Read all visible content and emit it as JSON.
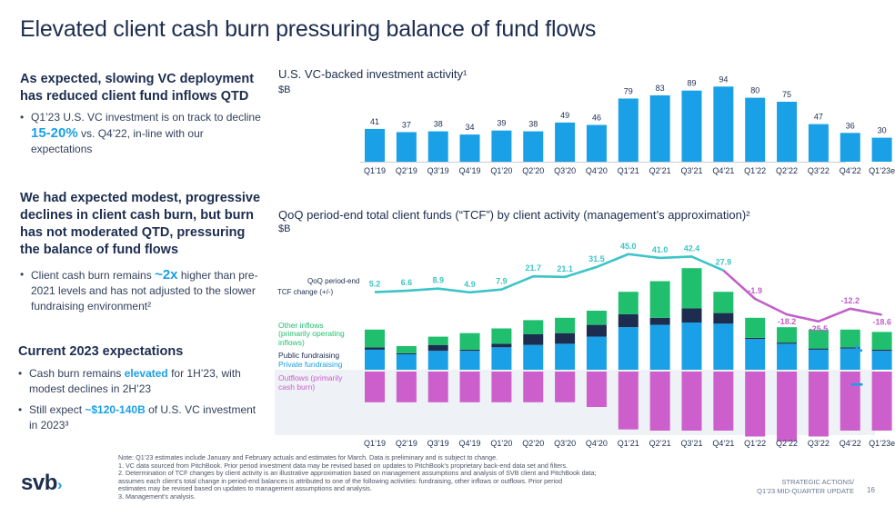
{
  "title": "Elevated client cash burn pressuring balance of fund flows",
  "left": {
    "s1_heading": "As expected, slowing VC deployment has reduced client fund inflows QTD",
    "s1_bullet_a": "Q1’23 U.S. VC investment is on track to decline ",
    "s1_bullet_hl": "15-20%",
    "s1_bullet_b": " vs. Q4’22, in-line with our expectations",
    "s2_heading": "We had expected modest, progressive declines in client cash burn, but burn has not moderated QTD, pressuring the balance of fund flows",
    "s2_bullet_a": "Client cash burn remains ",
    "s2_bullet_hl": "~2x",
    "s2_bullet_b": " higher than pre-2021 levels and has not adjusted to the slower fundraising environment²",
    "s3_heading": "Current 2023 expectations",
    "s3_b1_a": "Cash burn remains ",
    "s3_b1_hl": "elevated",
    "s3_b1_b": " for 1H’23, with modest declines in 2H’23",
    "s3_b2_a": "Still expect ",
    "s3_b2_hl": "~$120-140B",
    "s3_b2_b": " of U.S. VC investment in 2023³"
  },
  "chart1_title": "U.S. VC-backed investment activity¹",
  "chart1_unit": "$B",
  "chart2_title": "QoQ period-end total client funds (“TCF”) by client activity (management’s approximation)²",
  "chart2_unit": "$B",
  "legend": {
    "tcf_change_1": "QoQ period-end",
    "tcf_change_2": "TCF change (+/-)",
    "other_1": "Other inflows",
    "other_2": "(primarily operating",
    "other_3": "inflows)",
    "public": "Public fundraising",
    "private": "Private fundraising",
    "out_1": "Outflows (primarily",
    "out_2": "cash burn)",
    "plus": "+",
    "minus": "–"
  },
  "chart_data": [
    {
      "type": "bar",
      "title": "U.S. VC-backed investment activity¹",
      "ylabel": "$B",
      "categories": [
        "Q1’19",
        "Q2’19",
        "Q3’19",
        "Q4’19",
        "Q1’20",
        "Q2’20",
        "Q3’20",
        "Q4’20",
        "Q1’21",
        "Q2’21",
        "Q3’21",
        "Q4’21",
        "Q1’22",
        "Q2’22",
        "Q3’22",
        "Q4’22",
        "Q1’23e"
      ],
      "values": [
        41,
        37,
        38,
        34,
        39,
        38,
        49,
        46,
        79,
        83,
        89,
        94,
        80,
        75,
        47,
        36,
        30
      ],
      "ylim": [
        0,
        100
      ],
      "color": "#1aa0e6"
    },
    {
      "type": "bar",
      "stacked": true,
      "title": "QoQ period-end total client funds (“TCF”) by client activity (management’s approximation)²",
      "ylabel": "$B",
      "categories": [
        "Q1’19",
        "Q2’19",
        "Q3’19",
        "Q4’19",
        "Q1’20",
        "Q2’20",
        "Q3’20",
        "Q4’20",
        "Q1’21",
        "Q2’21",
        "Q3’21",
        "Q4’21",
        "Q1’22",
        "Q2’22",
        "Q3’22",
        "Q4’22",
        "Q1’23e"
      ],
      "series": [
        {
          "name": "Private fundraising",
          "color": "#1aa0e6",
          "values": [
            17,
            13,
            16,
            16,
            19,
            21,
            22,
            28,
            36,
            38,
            40,
            39,
            26,
            22,
            17,
            18,
            16
          ]
        },
        {
          "name": "Public fundraising",
          "color": "#1c2d4f",
          "values": [
            2,
            1,
            5,
            1,
            3,
            9,
            9,
            10,
            11,
            6,
            12,
            9,
            1,
            1,
            1,
            1,
            1
          ]
        },
        {
          "name": "Other inflows (primarily operating inflows)",
          "color": "#1fbf6e",
          "values": [
            15,
            6,
            7,
            14,
            13,
            12,
            13,
            12,
            19,
            31,
            34,
            18,
            17,
            13,
            16,
            15,
            15
          ]
        },
        {
          "name": "Outflows (primarily cash burn)",
          "color": "#cc5fcc",
          "values": [
            -26,
            -26,
            -26,
            -26,
            -26,
            -26,
            -26,
            -30,
            -49,
            -50,
            -50,
            -50,
            -55,
            -59,
            -55,
            -50,
            -50
          ]
        }
      ],
      "line": {
        "name": "QoQ period-end TCF change (+/-)",
        "values": [
          5.2,
          6.6,
          8.9,
          4.9,
          7.9,
          21.7,
          21.1,
          31.5,
          45.0,
          41.0,
          42.4,
          27.9,
          -1.9,
          -18.2,
          -25.5,
          -12.2,
          -18.6
        ],
        "labels": [
          "5.2",
          "6.6",
          "8.9",
          "4.9",
          "7.9",
          "21.7",
          "21.1",
          "31.5",
          "45.0",
          "41.0",
          "42.4",
          "27.9",
          "-1.9",
          "-18.2",
          "-25.5",
          "-12.2",
          "-18.6"
        ],
        "color_positive": "#3cc4c6",
        "color_negative": "#c060c8"
      }
    }
  ],
  "notes": [
    "Note: Q1’23 estimates include January and February actuals and estimates for March. Data is preliminary and is subject to change.",
    "1. VC data sourced from PitchBook. Prior period investment data may be revised based on updates to PitchBook’s proprietary back-end data set and filters.",
    "2. Determination of TCF changes by client activity is an illustrative approximation based on management assumptions and analysis of SVB client and PitchBook data;",
    "assumes each client’s total change in period-end balances is attributed to one of the following activities: fundraising, other inflows or outflows. Prior period",
    "estimates may be revised based on updates to management assumptions and analysis.",
    "3. Management’s analysis."
  ],
  "logo_text": "svb",
  "logo_chevron": "›",
  "footer_1": "STRATEGIC ACTIONS/",
  "footer_2": "Q1’23 MID-QUARTER UPDATE",
  "page_number": "16"
}
